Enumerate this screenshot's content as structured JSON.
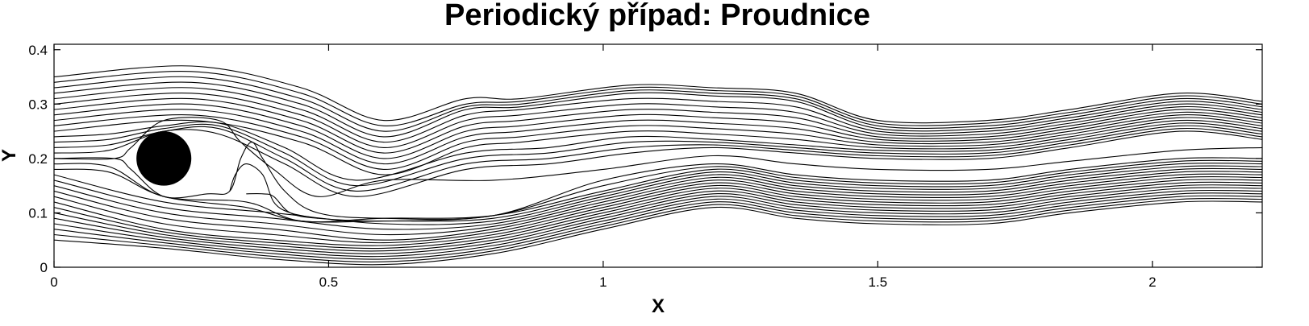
{
  "chart_data": {
    "type": "line",
    "title": "Periodický případ: Proudnice",
    "xlabel": "X",
    "ylabel": "Y",
    "xlim": [
      0,
      2.2
    ],
    "ylim": [
      0,
      0.41
    ],
    "xticks": [
      0,
      0.5,
      1,
      1.5,
      2
    ],
    "xtick_labels": [
      "0",
      "0.5",
      "1",
      "1.5",
      "2"
    ],
    "yticks": [
      0,
      0.1,
      0.2,
      0.3,
      0.4
    ],
    "ytick_labels": [
      "0",
      "0.1",
      "0.2",
      "0.3",
      "0.4"
    ],
    "grid": false,
    "obstacle": {
      "shape": "circle",
      "center": [
        0.2,
        0.2
      ],
      "radius": 0.05,
      "color": "#000000"
    },
    "series": [
      {
        "x": [
          0,
          0.25,
          0.45,
          0.6,
          0.75,
          0.85,
          1.05,
          1.2,
          1.35,
          1.5,
          1.7,
          1.85,
          2.05,
          2.2
        ],
        "y": [
          0.35,
          0.37,
          0.33,
          0.27,
          0.31,
          0.31,
          0.335,
          0.33,
          0.32,
          0.27,
          0.27,
          0.29,
          0.32,
          0.305
        ]
      },
      {
        "x": [
          0,
          0.25,
          0.45,
          0.6,
          0.75,
          0.85,
          1.05,
          1.2,
          1.35,
          1.5,
          1.7,
          1.85,
          2.05,
          2.2
        ],
        "y": [
          0.34,
          0.36,
          0.32,
          0.26,
          0.3,
          0.305,
          0.33,
          0.325,
          0.315,
          0.265,
          0.265,
          0.285,
          0.315,
          0.3
        ]
      },
      {
        "x": [
          0,
          0.25,
          0.45,
          0.6,
          0.75,
          0.85,
          1.05,
          1.2,
          1.35,
          1.5,
          1.7,
          1.85,
          2.05,
          2.2
        ],
        "y": [
          0.33,
          0.35,
          0.31,
          0.25,
          0.295,
          0.3,
          0.325,
          0.32,
          0.31,
          0.26,
          0.26,
          0.28,
          0.31,
          0.295
        ]
      },
      {
        "x": [
          0,
          0.25,
          0.45,
          0.6,
          0.75,
          0.85,
          1.05,
          1.2,
          1.35,
          1.5,
          1.7,
          1.85,
          2.05,
          2.2
        ],
        "y": [
          0.32,
          0.34,
          0.3,
          0.24,
          0.29,
          0.295,
          0.32,
          0.315,
          0.305,
          0.255,
          0.255,
          0.275,
          0.305,
          0.29
        ]
      },
      {
        "x": [
          0,
          0.25,
          0.45,
          0.6,
          0.75,
          0.85,
          1.05,
          1.2,
          1.35,
          1.5,
          1.7,
          1.85,
          2.05,
          2.2
        ],
        "y": [
          0.31,
          0.33,
          0.29,
          0.23,
          0.28,
          0.29,
          0.31,
          0.305,
          0.295,
          0.25,
          0.25,
          0.27,
          0.3,
          0.285
        ]
      },
      {
        "x": [
          0,
          0.25,
          0.45,
          0.6,
          0.75,
          0.85,
          1.05,
          1.2,
          1.35,
          1.5,
          1.7,
          1.85,
          2.05,
          2.2
        ],
        "y": [
          0.3,
          0.32,
          0.28,
          0.22,
          0.27,
          0.28,
          0.3,
          0.295,
          0.285,
          0.245,
          0.245,
          0.265,
          0.295,
          0.28
        ]
      },
      {
        "x": [
          0,
          0.25,
          0.45,
          0.6,
          0.75,
          0.85,
          1.05,
          1.2,
          1.35,
          1.5,
          1.7,
          1.85,
          2.05,
          2.2
        ],
        "y": [
          0.29,
          0.31,
          0.27,
          0.21,
          0.26,
          0.27,
          0.29,
          0.285,
          0.275,
          0.24,
          0.24,
          0.26,
          0.29,
          0.275
        ]
      },
      {
        "x": [
          0,
          0.25,
          0.45,
          0.6,
          0.75,
          0.85,
          1.05,
          1.2,
          1.35,
          1.5,
          1.7,
          1.85,
          2.05,
          2.2
        ],
        "y": [
          0.28,
          0.3,
          0.26,
          0.2,
          0.25,
          0.26,
          0.28,
          0.275,
          0.265,
          0.235,
          0.235,
          0.255,
          0.285,
          0.27
        ]
      },
      {
        "x": [
          0,
          0.25,
          0.45,
          0.6,
          0.75,
          0.85,
          1.05,
          1.2,
          1.35,
          1.5,
          1.7,
          1.85,
          2.05,
          2.2
        ],
        "y": [
          0.27,
          0.29,
          0.25,
          0.19,
          0.24,
          0.25,
          0.27,
          0.265,
          0.255,
          0.23,
          0.23,
          0.25,
          0.28,
          0.265
        ]
      },
      {
        "x": [
          0,
          0.25,
          0.45,
          0.6,
          0.75,
          0.85,
          1.05,
          1.2,
          1.35,
          1.5,
          1.7,
          1.85,
          2.05,
          2.2
        ],
        "y": [
          0.26,
          0.28,
          0.24,
          0.18,
          0.23,
          0.24,
          0.26,
          0.255,
          0.245,
          0.225,
          0.225,
          0.245,
          0.275,
          0.26
        ]
      },
      {
        "x": [
          0,
          0.25,
          0.45,
          0.6,
          0.75,
          0.85,
          1.05,
          1.2,
          1.35,
          1.5,
          1.7,
          1.85,
          2.05,
          2.2
        ],
        "y": [
          0.25,
          0.27,
          0.23,
          0.17,
          0.22,
          0.23,
          0.25,
          0.245,
          0.235,
          0.22,
          0.22,
          0.24,
          0.27,
          0.255
        ]
      },
      {
        "x": [
          0,
          0.1,
          0.2,
          0.3,
          0.42,
          0.55,
          0.75,
          0.9,
          1.05,
          1.2,
          1.35,
          1.5,
          1.7,
          1.85,
          2.05,
          2.2
        ],
        "y": [
          0.24,
          0.245,
          0.26,
          0.265,
          0.22,
          0.16,
          0.21,
          0.22,
          0.24,
          0.235,
          0.225,
          0.215,
          0.215,
          0.235,
          0.265,
          0.25
        ]
      },
      {
        "x": [
          0,
          0.1,
          0.2,
          0.3,
          0.42,
          0.55,
          0.75,
          0.9,
          1.05,
          1.2,
          1.35,
          1.5,
          1.7,
          1.85,
          2.05,
          2.2
        ],
        "y": [
          0.23,
          0.235,
          0.255,
          0.26,
          0.21,
          0.15,
          0.2,
          0.21,
          0.23,
          0.23,
          0.22,
          0.21,
          0.21,
          0.23,
          0.26,
          0.245
        ]
      },
      {
        "x": [
          0,
          0.1,
          0.2,
          0.3,
          0.42,
          0.55,
          0.75,
          0.9,
          1.05,
          1.2,
          1.35,
          1.5,
          1.7,
          1.85,
          2.05,
          2.2
        ],
        "y": [
          0.22,
          0.225,
          0.25,
          0.255,
          0.2,
          0.14,
          0.19,
          0.2,
          0.22,
          0.225,
          0.215,
          0.205,
          0.205,
          0.225,
          0.255,
          0.24
        ]
      },
      {
        "x": [
          0,
          0.1,
          0.2,
          0.3,
          0.42,
          0.55,
          0.75,
          0.9,
          1.05,
          1.2,
          1.35,
          1.5,
          1.7,
          1.85,
          2.05,
          2.2
        ],
        "y": [
          0.21,
          0.215,
          0.25,
          0.245,
          0.19,
          0.13,
          0.18,
          0.19,
          0.21,
          0.22,
          0.21,
          0.2,
          0.2,
          0.22,
          0.25,
          0.235
        ]
      },
      {
        "x": [
          0,
          0.11,
          0.14,
          0.2,
          0.3,
          0.34,
          0.4,
          0.48,
          0.6,
          0.8,
          1.0,
          1.2,
          1.35,
          1.5,
          1.7,
          1.85,
          2.05,
          2.2
        ],
        "y": [
          0.2,
          0.2,
          0.22,
          0.27,
          0.27,
          0.23,
          0.18,
          0.13,
          0.16,
          0.16,
          0.18,
          0.205,
          0.19,
          0.18,
          0.18,
          0.195,
          0.215,
          0.22
        ]
      },
      {
        "x": [
          0,
          0.11,
          0.14,
          0.2,
          0.28,
          0.32,
          0.34,
          0.36,
          0.38,
          0.42,
          0.48,
          0.6,
          0.8,
          1.0,
          1.2,
          1.35,
          1.5,
          1.7,
          1.85,
          2.05,
          2.2
        ],
        "y": [
          0.2,
          0.2,
          0.18,
          0.13,
          0.135,
          0.14,
          0.2,
          0.23,
          0.2,
          0.14,
          0.1,
          0.09,
          0.095,
          0.16,
          0.19,
          0.17,
          0.16,
          0.16,
          0.18,
          0.2,
          0.2
        ]
      },
      {
        "x": [
          0.32,
          0.33,
          0.35,
          0.38,
          0.4,
          0.43,
          0.48
        ],
        "y": [
          0.14,
          0.17,
          0.19,
          0.17,
          0.12,
          0.1,
          0.09
        ]
      },
      {
        "x": [
          0.35,
          0.38,
          0.4,
          0.43,
          0.48,
          0.6,
          0.8,
          1.0,
          1.2,
          1.35,
          1.5,
          1.7,
          1.85,
          2.05,
          2.2
        ],
        "y": [
          0.135,
          0.135,
          0.13,
          0.1,
          0.09,
          0.085,
          0.095,
          0.15,
          0.185,
          0.165,
          0.155,
          0.155,
          0.175,
          0.195,
          0.195
        ]
      },
      {
        "x": [
          0,
          0.1,
          0.2,
          0.35,
          0.45,
          0.6,
          0.8,
          1.0,
          1.2,
          1.35,
          1.5,
          1.7,
          1.85,
          2.05,
          2.2
        ],
        "y": [
          0.19,
          0.185,
          0.13,
          0.12,
          0.085,
          0.09,
          0.095,
          0.14,
          0.18,
          0.16,
          0.15,
          0.15,
          0.17,
          0.19,
          0.19
        ]
      },
      {
        "x": [
          0,
          0.1,
          0.2,
          0.35,
          0.45,
          0.6,
          0.8,
          1.0,
          1.2,
          1.35,
          1.5,
          1.7,
          1.85,
          2.05,
          2.2
        ],
        "y": [
          0.18,
          0.175,
          0.13,
          0.11,
          0.085,
          0.085,
          0.09,
          0.135,
          0.175,
          0.155,
          0.145,
          0.145,
          0.165,
          0.185,
          0.185
        ]
      },
      {
        "x": [
          0,
          0.2,
          0.4,
          0.6,
          0.8,
          1.0,
          1.2,
          1.35,
          1.5,
          1.7,
          1.85,
          2.05,
          2.2
        ],
        "y": [
          0.17,
          0.12,
          0.1,
          0.08,
          0.085,
          0.13,
          0.17,
          0.15,
          0.14,
          0.14,
          0.16,
          0.18,
          0.18
        ]
      },
      {
        "x": [
          0,
          0.2,
          0.4,
          0.6,
          0.8,
          1.0,
          1.2,
          1.35,
          1.5,
          1.7,
          1.85,
          2.05,
          2.2
        ],
        "y": [
          0.16,
          0.11,
          0.09,
          0.07,
          0.08,
          0.125,
          0.165,
          0.145,
          0.135,
          0.135,
          0.155,
          0.175,
          0.175
        ]
      },
      {
        "x": [
          0,
          0.2,
          0.4,
          0.6,
          0.8,
          1.0,
          1.2,
          1.35,
          1.5,
          1.7,
          1.85,
          2.05,
          2.2
        ],
        "y": [
          0.15,
          0.1,
          0.08,
          0.06,
          0.075,
          0.12,
          0.16,
          0.14,
          0.13,
          0.13,
          0.15,
          0.17,
          0.17
        ]
      },
      {
        "x": [
          0,
          0.2,
          0.4,
          0.6,
          0.8,
          1.0,
          1.2,
          1.35,
          1.5,
          1.7,
          1.85,
          2.05,
          2.2
        ],
        "y": [
          0.14,
          0.09,
          0.07,
          0.05,
          0.07,
          0.115,
          0.155,
          0.135,
          0.125,
          0.125,
          0.145,
          0.165,
          0.165
        ]
      },
      {
        "x": [
          0,
          0.2,
          0.4,
          0.6,
          0.8,
          1.0,
          1.2,
          1.35,
          1.5,
          1.7,
          1.85,
          2.05,
          2.2
        ],
        "y": [
          0.13,
          0.08,
          0.06,
          0.045,
          0.065,
          0.11,
          0.15,
          0.13,
          0.12,
          0.12,
          0.14,
          0.16,
          0.16
        ]
      },
      {
        "x": [
          0,
          0.2,
          0.4,
          0.6,
          0.8,
          1.0,
          1.2,
          1.35,
          1.5,
          1.7,
          1.85,
          2.05,
          2.2
        ],
        "y": [
          0.12,
          0.07,
          0.05,
          0.04,
          0.06,
          0.105,
          0.145,
          0.125,
          0.115,
          0.115,
          0.135,
          0.155,
          0.155
        ]
      },
      {
        "x": [
          0,
          0.2,
          0.4,
          0.6,
          0.8,
          1.0,
          1.2,
          1.35,
          1.5,
          1.7,
          1.85,
          2.05,
          2.2
        ],
        "y": [
          0.11,
          0.065,
          0.045,
          0.035,
          0.055,
          0.1,
          0.14,
          0.12,
          0.11,
          0.11,
          0.13,
          0.15,
          0.15
        ]
      },
      {
        "x": [
          0,
          0.2,
          0.4,
          0.6,
          0.8,
          1.0,
          1.2,
          1.35,
          1.5,
          1.7,
          1.85,
          2.05,
          2.2
        ],
        "y": [
          0.1,
          0.06,
          0.04,
          0.03,
          0.05,
          0.095,
          0.135,
          0.115,
          0.105,
          0.105,
          0.125,
          0.145,
          0.145
        ]
      },
      {
        "x": [
          0,
          0.2,
          0.4,
          0.6,
          0.8,
          1.0,
          1.2,
          1.35,
          1.5,
          1.7,
          1.85,
          2.05,
          2.2
        ],
        "y": [
          0.09,
          0.055,
          0.035,
          0.025,
          0.045,
          0.09,
          0.13,
          0.11,
          0.1,
          0.1,
          0.12,
          0.14,
          0.14
        ]
      },
      {
        "x": [
          0,
          0.2,
          0.4,
          0.6,
          0.8,
          1.0,
          1.2,
          1.35,
          1.5,
          1.7,
          1.85,
          2.05,
          2.2
        ],
        "y": [
          0.08,
          0.05,
          0.03,
          0.02,
          0.04,
          0.085,
          0.125,
          0.105,
          0.095,
          0.095,
          0.115,
          0.135,
          0.135
        ]
      },
      {
        "x": [
          0,
          0.2,
          0.4,
          0.6,
          0.8,
          1.0,
          1.2,
          1.35,
          1.5,
          1.7,
          1.85,
          2.05,
          2.2
        ],
        "y": [
          0.07,
          0.045,
          0.025,
          0.015,
          0.035,
          0.08,
          0.12,
          0.1,
          0.09,
          0.09,
          0.11,
          0.13,
          0.13
        ]
      },
      {
        "x": [
          0,
          0.2,
          0.4,
          0.6,
          0.8,
          1.0,
          1.2,
          1.35,
          1.5,
          1.7,
          1.85,
          2.05,
          2.2
        ],
        "y": [
          0.06,
          0.04,
          0.02,
          0.01,
          0.03,
          0.075,
          0.115,
          0.095,
          0.085,
          0.085,
          0.105,
          0.125,
          0.125
        ]
      },
      {
        "x": [
          0,
          0.2,
          0.4,
          0.6,
          0.8,
          1.0,
          1.2,
          1.35,
          1.5,
          1.7,
          1.85,
          2.05,
          2.2
        ],
        "y": [
          0.05,
          0.035,
          0.015,
          0.005,
          0.025,
          0.07,
          0.11,
          0.09,
          0.08,
          0.08,
          0.1,
          0.12,
          0.12
        ]
      }
    ]
  }
}
